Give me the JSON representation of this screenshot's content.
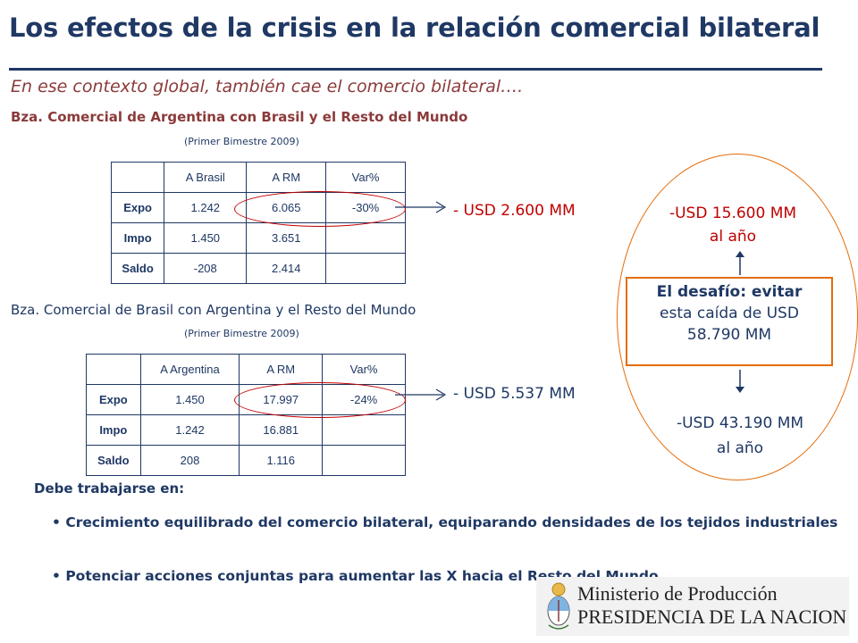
{
  "title": "Los efectos de la crisis en la relación comercial bilateral",
  "subtitle": "En ese contexto global, también cae el comercio bilateral….",
  "section1": {
    "heading": "Bza. Comercial de Argentina con Brasil y el Resto del Mundo",
    "period": "(Primer Bimestre 2009)",
    "columns": [
      "A Brasil",
      "A RM",
      "Var%"
    ],
    "rows": [
      {
        "label": "Expo",
        "c1": "1.242",
        "c2": "6.065",
        "c3": "-30%"
      },
      {
        "label": "Impo",
        "c1": "1.450",
        "c2": "3.651",
        "c3": ""
      },
      {
        "label": "Saldo",
        "c1": "-208",
        "c2": "2.414",
        "c3": ""
      }
    ],
    "callout": "- USD 2.600 MM"
  },
  "section2": {
    "heading": "Bza. Comercial de Brasil con Argentina y el Resto del Mundo",
    "period": "(Primer Bimestre 2009)",
    "columns": [
      "A Argentina",
      "A RM",
      "Var%"
    ],
    "rows": [
      {
        "label": "Expo",
        "c1": "1.450",
        "c2": "17.997",
        "c3": "-24%"
      },
      {
        "label": "Impo",
        "c1": "1.242",
        "c2": "16.881",
        "c3": ""
      },
      {
        "label": "Saldo",
        "c1": "208",
        "c2": "1.116",
        "c3": ""
      }
    ],
    "callout": "- USD 5.537 MM"
  },
  "right_panel": {
    "top_line1": "-USD 15.600 MM",
    "top_line2": "al año",
    "challenge_line1": "El desafío: evitar",
    "challenge_line2": "esta caída de USD",
    "challenge_line3": "58.790 MM",
    "bottom_line1": "-USD 43.190 MM",
    "bottom_line2": "al año"
  },
  "footer": {
    "heading": "Debe trabajarse en:",
    "bullets": [
      "Crecimiento equilibrado del comercio bilateral, equiparando densidades de los tejidos industriales",
      "Potenciar acciones conjuntas para aumentar las X hacia el Resto del Mundo"
    ]
  },
  "logo": {
    "line1": "Ministerio de Producción",
    "line2": "PRESIDENCIA DE LA NACION",
    "icon": "argentina-coat-of-arms-icon"
  },
  "colors": {
    "navy": "#1f3864",
    "red": "#c00000",
    "orange": "#e36c0a",
    "brown": "#8b3a3a"
  }
}
